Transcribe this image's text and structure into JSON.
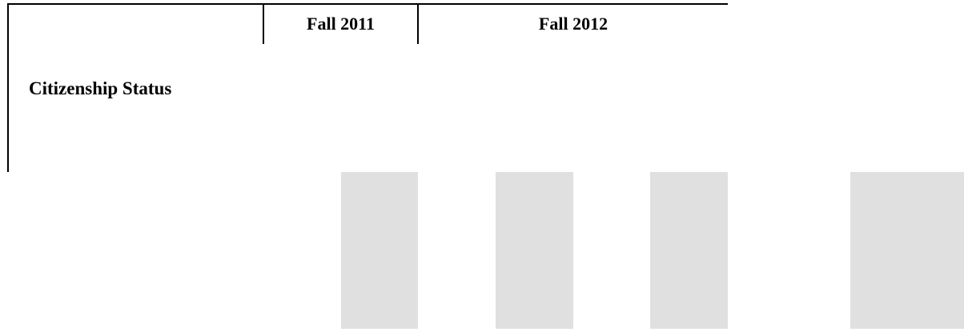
{
  "table": {
    "columns": [
      {
        "label": "Fall 2011"
      },
      {
        "label": "Fall 2012"
      }
    ],
    "rows": [
      {
        "label": "Citizenship Status"
      }
    ],
    "shade_color": "#e0e0e0",
    "rule_color": "#000000"
  }
}
